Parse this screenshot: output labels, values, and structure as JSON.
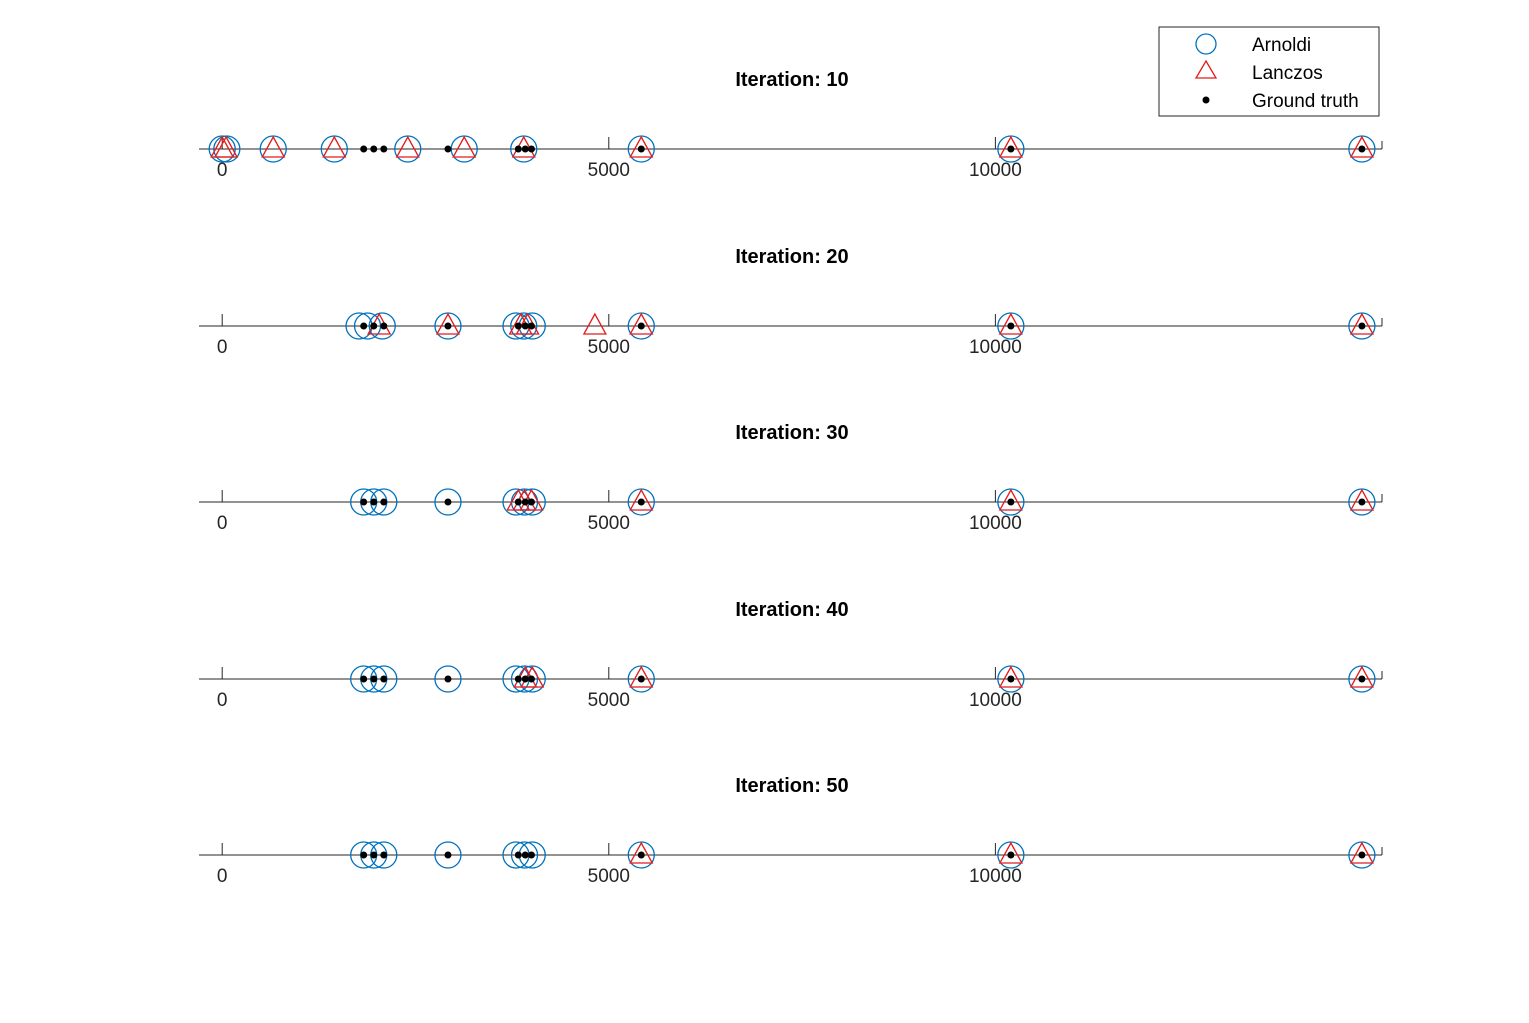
{
  "chart_data": {
    "type": "scatter",
    "xlim": [
      -300,
      15000
    ],
    "xticks": [
      0,
      5000,
      10000
    ],
    "xtick_labels": [
      "0",
      "5000",
      "10000"
    ],
    "legend": {
      "position": "top-right",
      "entries": [
        {
          "name": "Arnoldi",
          "marker": "circle",
          "color": "#0072BD"
        },
        {
          "name": "Lanczos",
          "marker": "triangle",
          "color": "#E41A1C"
        },
        {
          "name": "Ground truth",
          "marker": "dot",
          "color": "#000000"
        }
      ]
    },
    "ground_truth": [
      1830,
      1960,
      2090,
      2920,
      3830,
      3920,
      4000,
      5420,
      10200,
      14740
    ],
    "subplots": [
      {
        "title": "Iteration: 10",
        "arnoldi": [
          0,
          60,
          660,
          1450,
          2400,
          3130,
          3900,
          5420,
          10200,
          14740
        ],
        "lanczos": [
          0,
          50,
          660,
          1450,
          2400,
          3130,
          3900,
          5420,
          10200,
          14740
        ],
        "ground_truth": [
          1830,
          1960,
          2090,
          2920,
          3830,
          3920,
          4000,
          5420,
          10200,
          14740
        ]
      },
      {
        "title": "Iteration: 20",
        "arnoldi": [
          1770,
          1880,
          2070,
          2920,
          3800,
          3900,
          4010,
          5420,
          10200,
          14740
        ],
        "lanczos": [
          2030,
          2920,
          3860,
          3950,
          4820,
          5420,
          10200,
          14740
        ],
        "ground_truth": [
          1830,
          1960,
          2090,
          2920,
          3830,
          3920,
          4000,
          5420,
          10200,
          14740
        ]
      },
      {
        "title": "Iteration: 30",
        "arnoldi": [
          1830,
          1960,
          2090,
          2920,
          3800,
          3910,
          4010,
          5420,
          10200,
          14740
        ],
        "lanczos": [
          3830,
          3910,
          4000,
          5420,
          10200,
          14740
        ],
        "ground_truth": [
          1830,
          1960,
          2090,
          2920,
          3830,
          3920,
          4000,
          5420,
          10200,
          14740
        ]
      },
      {
        "title": "Iteration: 40",
        "arnoldi": [
          1830,
          1960,
          2090,
          2920,
          3800,
          3910,
          4010,
          5420,
          10200,
          14740
        ],
        "lanczos": [
          3920,
          4010,
          5420,
          10200,
          14740
        ],
        "ground_truth": [
          1830,
          1960,
          2090,
          2920,
          3830,
          3920,
          4000,
          5420,
          10200,
          14740
        ]
      },
      {
        "title": "Iteration: 50",
        "arnoldi": [
          1830,
          1960,
          2090,
          2920,
          3800,
          3910,
          4010,
          5420,
          10200,
          14740
        ],
        "lanczos": [
          5420,
          10200,
          14740
        ],
        "ground_truth": [
          1830,
          1960,
          2090,
          2920,
          3830,
          3920,
          4000,
          5420,
          10200,
          14740
        ]
      }
    ]
  }
}
